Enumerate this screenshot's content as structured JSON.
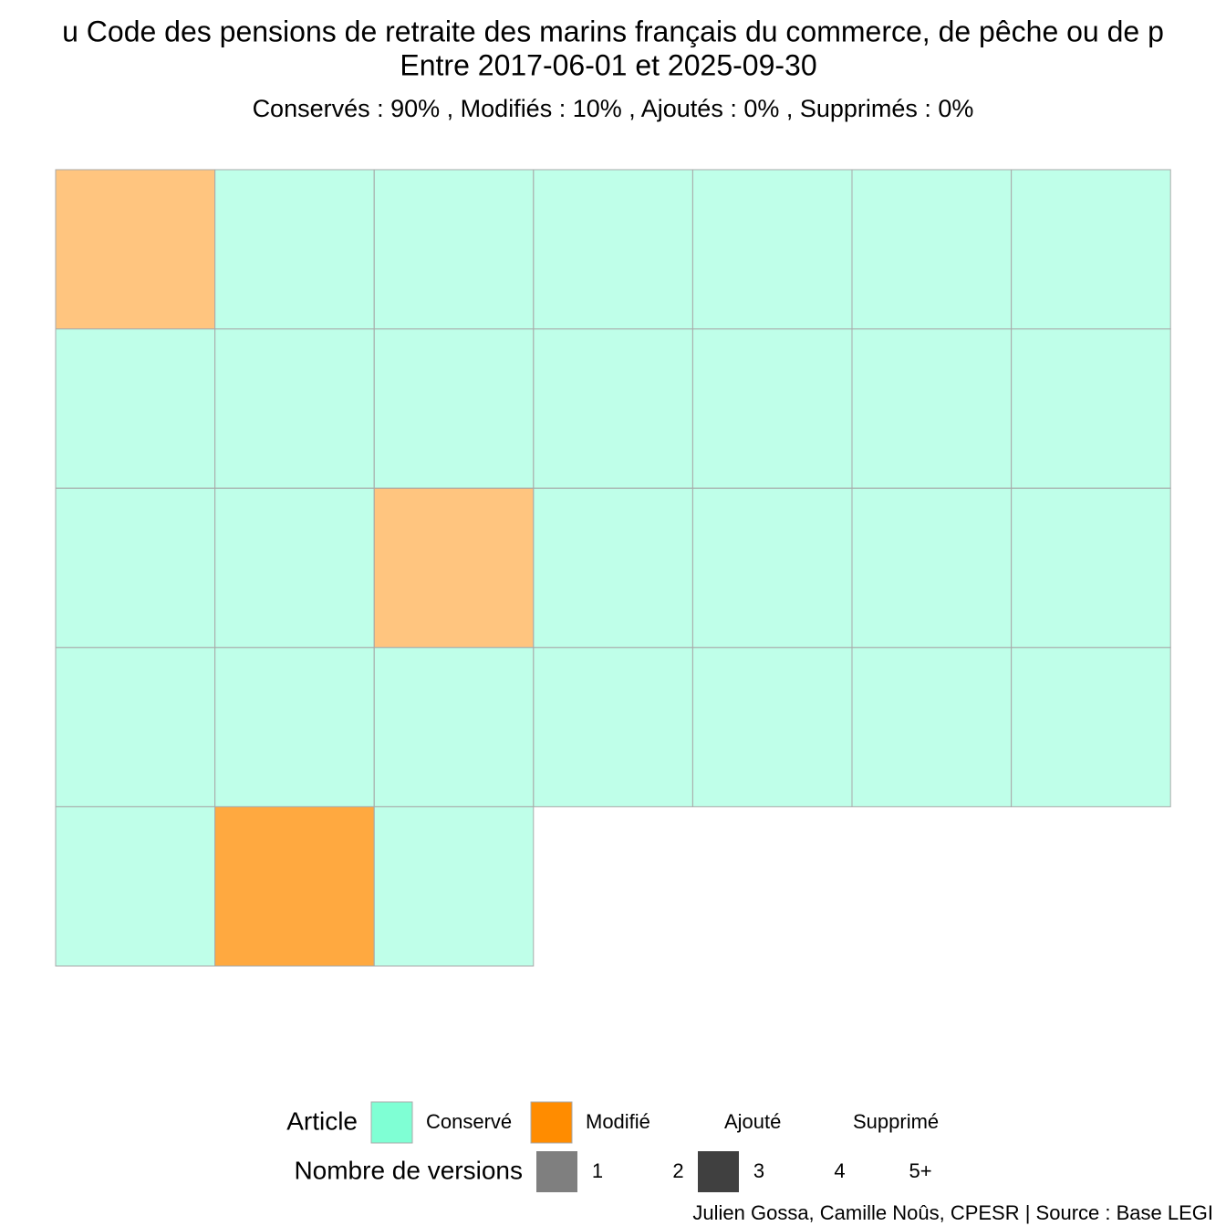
{
  "chart_data": {
    "type": "waffle",
    "title": "u Code des pensions de retraite des marins français du commerce, de pêche ou de p",
    "subtitle": "Entre 2017-06-01 et 2025-09-30",
    "summary": "Conservés :  90% , Modifiés :  10% , Ajoutés :  0% , Supprimés :  0%",
    "caption": "Julien Gossa, Camille Noûs, CPESR  |  Source : Base LEGI",
    "columns": 7,
    "article_legend": {
      "title": "Article",
      "names": [
        "Conservé",
        "Modifié",
        "Ajouté",
        "Supprimé"
      ],
      "colors": [
        "#7fffd4",
        "#ff8c00",
        null,
        null
      ]
    },
    "version_legend": {
      "title": "Nombre de versions",
      "labels": [
        "1",
        "2",
        "3",
        "4",
        "5+"
      ],
      "alphas": [
        0.5,
        null,
        0.75,
        null,
        null
      ]
    },
    "cells": [
      {
        "status": 1,
        "versions": 1
      },
      {
        "status": 0,
        "versions": 1
      },
      {
        "status": 0,
        "versions": 1
      },
      {
        "status": 0,
        "versions": 1
      },
      {
        "status": 0,
        "versions": 1
      },
      {
        "status": 0,
        "versions": 1
      },
      {
        "status": 0,
        "versions": 1
      },
      {
        "status": 0,
        "versions": 1
      },
      {
        "status": 0,
        "versions": 1
      },
      {
        "status": 0,
        "versions": 1
      },
      {
        "status": 0,
        "versions": 1
      },
      {
        "status": 0,
        "versions": 1
      },
      {
        "status": 0,
        "versions": 1
      },
      {
        "status": 0,
        "versions": 1
      },
      {
        "status": 0,
        "versions": 1
      },
      {
        "status": 0,
        "versions": 1
      },
      {
        "status": 1,
        "versions": 1
      },
      {
        "status": 0,
        "versions": 1
      },
      {
        "status": 0,
        "versions": 1
      },
      {
        "status": 0,
        "versions": 1
      },
      {
        "status": 0,
        "versions": 1
      },
      {
        "status": 0,
        "versions": 1
      },
      {
        "status": 0,
        "versions": 1
      },
      {
        "status": 0,
        "versions": 1
      },
      {
        "status": 0,
        "versions": 1
      },
      {
        "status": 0,
        "versions": 1
      },
      {
        "status": 0,
        "versions": 1
      },
      {
        "status": 0,
        "versions": 1
      },
      {
        "status": 0,
        "versions": 1
      },
      {
        "status": 1,
        "versions": 3
      },
      {
        "status": 0,
        "versions": 1
      }
    ]
  }
}
